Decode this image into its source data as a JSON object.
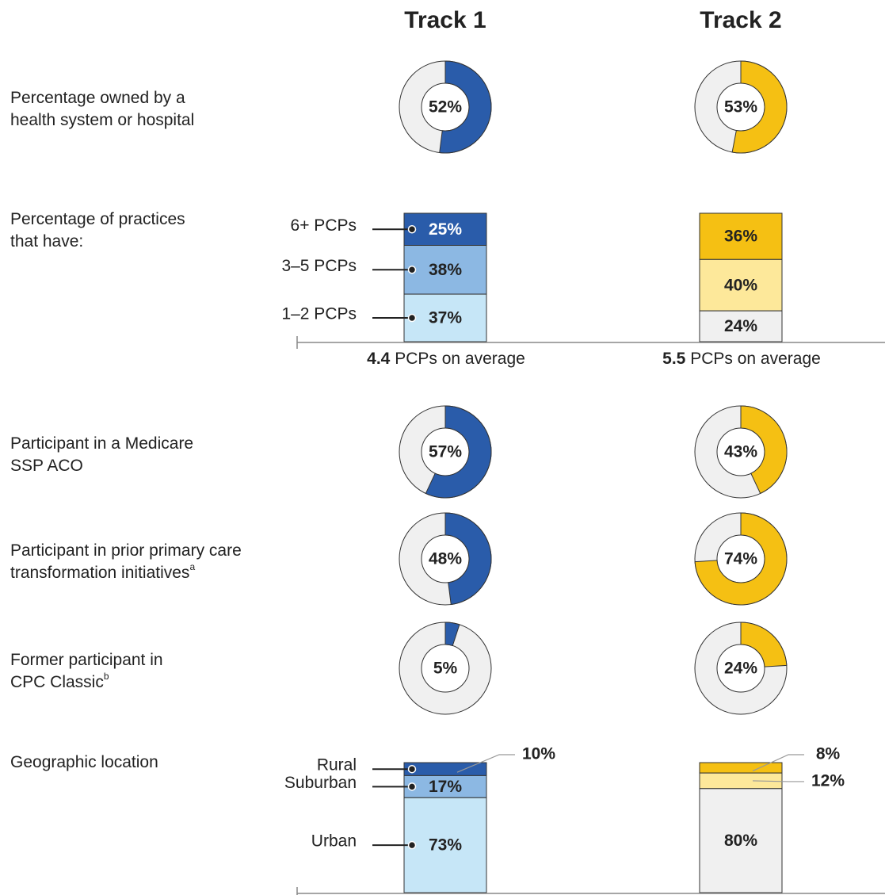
{
  "tracks": [
    {
      "name": "Track 1",
      "color": "#2a5caa",
      "shades": [
        "#2a5caa",
        "#8cb8e3",
        "#c6e6f7"
      ]
    },
    {
      "name": "Track 2",
      "color": "#f5c013",
      "shades": [
        "#f5c013",
        "#fde89a",
        "#f0f0f0"
      ]
    }
  ],
  "ownership": {
    "lines": [
      "Percentage owned by a",
      "health system or hospital"
    ],
    "values": [
      52,
      53
    ],
    "value_labels": [
      "52%",
      "53%"
    ]
  },
  "size": {
    "lines": [
      "Percentage of practices",
      "that have:"
    ],
    "categories": [
      "6+ PCPs",
      "3–5 PCPs",
      "1–2 PCPs"
    ],
    "values": [
      [
        25,
        38,
        37
      ],
      [
        36,
        40,
        24
      ]
    ],
    "value_labels": [
      [
        "25%",
        "38%",
        "37%"
      ],
      [
        "36%",
        "40%",
        "24%"
      ]
    ],
    "averages": [
      4.4,
      5.5
    ],
    "average_text": "PCPs on average"
  },
  "participation": [
    {
      "lines": [
        "Participant in a Medicare",
        "SSP ACO"
      ],
      "values": [
        57,
        43
      ],
      "value_labels": [
        "57%",
        "43%"
      ]
    },
    {
      "lines": [
        "Participant in prior primary care",
        "transformation initiatives"
      ],
      "note": "a",
      "values": [
        48,
        74
      ],
      "value_labels": [
        "48%",
        "74%"
      ]
    },
    {
      "lines": [
        "Former participant in",
        "CPC Classic"
      ],
      "note": "b",
      "values": [
        5,
        24
      ],
      "value_labels": [
        "5%",
        "24%"
      ]
    }
  ],
  "geography": {
    "lines": [
      "Geographic location"
    ],
    "categories": [
      "Rural",
      "Suburban",
      "Urban"
    ],
    "values": [
      [
        10,
        17,
        73
      ],
      [
        8,
        12,
        80
      ]
    ],
    "value_labels": [
      [
        "10%",
        "17%",
        "73%"
      ],
      [
        "8%",
        "12%",
        "80%"
      ]
    ]
  }
}
